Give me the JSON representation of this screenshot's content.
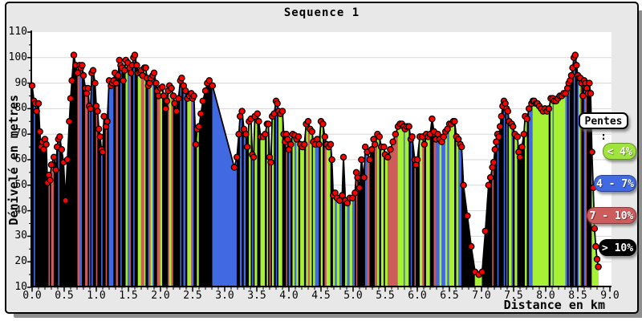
{
  "title": "Sequence 1",
  "panel": {
    "background": "#e8e8e8",
    "border": "#000000",
    "shadow": "#8f8f8f",
    "plot_background": "#ffffff",
    "grid_color": "#d7d7d7"
  },
  "legend": {
    "title": "Pentes :",
    "items": [
      {
        "label": "< 4%",
        "color": "#9fe43c",
        "text_color": "#ffffff"
      },
      {
        "label": "4 - 7%",
        "color": "#4169e1",
        "text_color": "#ffffff"
      },
      {
        "label": "7 - 10%",
        "color": "#cd5c5c",
        "text_color": "#ffffff"
      },
      {
        "label": "> 10%",
        "color": "#000000",
        "text_color": "#ffffff"
      }
    ]
  },
  "chart_data": {
    "type": "area",
    "title": "Sequence 1",
    "xlabel": "Distance en km",
    "ylabel": "Dénivelé en metres",
    "xlim": [
      0,
      9.04
    ],
    "ylim": [
      10,
      110
    ],
    "grid": "horizontal",
    "legend_position": "right",
    "marker_color": "#ff0000",
    "marker_outline": "#000000",
    "outline_color": "#000000",
    "y_tick_labels": [
      "110",
      "100",
      "90",
      "80",
      "70",
      "60",
      "50",
      "40",
      "30",
      "20",
      "10"
    ],
    "x_tick_labels": [
      "0.0",
      "0.5",
      "1.0",
      "1.5",
      "2.0",
      "2.5",
      "3.0",
      "3.5",
      "4.0",
      "4.5",
      "5.0",
      "5.5",
      "6.0",
      "6.5",
      "7.0",
      "7.5",
      "8.0",
      "8.5",
      "9.0"
    ],
    "slope_categories": [
      {
        "cat": "g",
        "label": "< 4%",
        "max_pct": 4,
        "color": "#a6f136"
      },
      {
        "cat": "b",
        "label": "4 - 7%",
        "max_pct": 7,
        "color": "#4169e1"
      },
      {
        "cat": "r",
        "label": "7 - 10%",
        "max_pct": 10,
        "color": "#cd5c5c"
      },
      {
        "cat": "k",
        "label": "> 10%",
        "max_pct": 999,
        "color": "#000000"
      }
    ],
    "segment_overrides": [
      {
        "from": 2.6,
        "to": 2.805,
        "cat": "k"
      },
      {
        "from": 2.805,
        "to": 3.17,
        "cat": "b"
      },
      {
        "from": 8.725,
        "to": 8.85,
        "cat": "g"
      }
    ],
    "points": [
      [
        0.0,
        89
      ],
      [
        0.03,
        83
      ],
      [
        0.05,
        82
      ],
      [
        0.07,
        79
      ],
      [
        0.1,
        82
      ],
      [
        0.12,
        71
      ],
      [
        0.14,
        65
      ],
      [
        0.16,
        67
      ],
      [
        0.18,
        64
      ],
      [
        0.2,
        68
      ],
      [
        0.22,
        66
      ],
      [
        0.24,
        51
      ],
      [
        0.26,
        54
      ],
      [
        0.28,
        52
      ],
      [
        0.3,
        58
      ],
      [
        0.34,
        61
      ],
      [
        0.37,
        56
      ],
      [
        0.39,
        65
      ],
      [
        0.41,
        68
      ],
      [
        0.43,
        69
      ],
      [
        0.46,
        64
      ],
      [
        0.49,
        59
      ],
      [
        0.52,
        44
      ],
      [
        0.55,
        60
      ],
      [
        0.58,
        75
      ],
      [
        0.6,
        84
      ],
      [
        0.62,
        91
      ],
      [
        0.65,
        101
      ],
      [
        0.68,
        97
      ],
      [
        0.71,
        94
      ],
      [
        0.74,
        97
      ],
      [
        0.76,
        96
      ],
      [
        0.78,
        97
      ],
      [
        0.8,
        93
      ],
      [
        0.83,
        88
      ],
      [
        0.85,
        86
      ],
      [
        0.87,
        88
      ],
      [
        0.89,
        81
      ],
      [
        0.91,
        80
      ],
      [
        0.93,
        94
      ],
      [
        0.95,
        95
      ],
      [
        0.98,
        90
      ],
      [
        1.0,
        81
      ],
      [
        1.02,
        79
      ],
      [
        1.04,
        72
      ],
      [
        1.06,
        69
      ],
      [
        1.08,
        64
      ],
      [
        1.1,
        63
      ],
      [
        1.12,
        77
      ],
      [
        1.15,
        73
      ],
      [
        1.17,
        75
      ],
      [
        1.2,
        91
      ],
      [
        1.23,
        89
      ],
      [
        1.25,
        90
      ],
      [
        1.27,
        91
      ],
      [
        1.29,
        94
      ],
      [
        1.31,
        90
      ],
      [
        1.34,
        93
      ],
      [
        1.36,
        99
      ],
      [
        1.38,
        97
      ],
      [
        1.4,
        96
      ],
      [
        1.42,
        91
      ],
      [
        1.44,
        95
      ],
      [
        1.46,
        99
      ],
      [
        1.49,
        98
      ],
      [
        1.52,
        96
      ],
      [
        1.54,
        94
      ],
      [
        1.56,
        97
      ],
      [
        1.58,
        100
      ],
      [
        1.6,
        101
      ],
      [
        1.63,
        97
      ],
      [
        1.65,
        94
      ],
      [
        1.68,
        94.5
      ],
      [
        1.7,
        95
      ],
      [
        1.72,
        93
      ],
      [
        1.75,
        96
      ],
      [
        1.77,
        96
      ],
      [
        1.79,
        92
      ],
      [
        1.81,
        89
      ],
      [
        1.83,
        90
      ],
      [
        1.85,
        92
      ],
      [
        1.88,
        93
      ],
      [
        1.9,
        94
      ],
      [
        1.93,
        90
      ],
      [
        1.95,
        87
      ],
      [
        1.97,
        85
      ],
      [
        2.0,
        88
      ],
      [
        2.03,
        88.5
      ],
      [
        2.05,
        85
      ],
      [
        2.08,
        80
      ],
      [
        2.1,
        83
      ],
      [
        2.12,
        87
      ],
      [
        2.14,
        89
      ],
      [
        2.17,
        88
      ],
      [
        2.2,
        85
      ],
      [
        2.22,
        82
      ],
      [
        2.25,
        79
      ],
      [
        2.28,
        84
      ],
      [
        2.31,
        91
      ],
      [
        2.33,
        92
      ],
      [
        2.36,
        89
      ],
      [
        2.39,
        87
      ],
      [
        2.42,
        84
      ],
      [
        2.45,
        85
      ],
      [
        2.48,
        86
      ],
      [
        2.5,
        84
      ],
      [
        2.52,
        85
      ],
      [
        2.55,
        66
      ],
      [
        2.57,
        72
      ],
      [
        2.6,
        73
      ],
      [
        2.63,
        78
      ],
      [
        2.66,
        83
      ],
      [
        2.7,
        87
      ],
      [
        2.73,
        90
      ],
      [
        2.76,
        91
      ],
      [
        2.81,
        89
      ],
      [
        3.15,
        57
      ],
      [
        3.19,
        61
      ],
      [
        3.22,
        70
      ],
      [
        3.24,
        77
      ],
      [
        3.27,
        79
      ],
      [
        3.3,
        72
      ],
      [
        3.33,
        70
      ],
      [
        3.35,
        65
      ],
      [
        3.38,
        75
      ],
      [
        3.41,
        76
      ],
      [
        3.43,
        62
      ],
      [
        3.45,
        61
      ],
      [
        3.47,
        77
      ],
      [
        3.51,
        78
      ],
      [
        3.53,
        75
      ],
      [
        3.56,
        69
      ],
      [
        3.6,
        69
      ],
      [
        3.63,
        70
      ],
      [
        3.66,
        74
      ],
      [
        3.68,
        74
      ],
      [
        3.7,
        61
      ],
      [
        3.72,
        59
      ],
      [
        3.74,
        77
      ],
      [
        3.77,
        78
      ],
      [
        3.8,
        83
      ],
      [
        3.82,
        82
      ],
      [
        3.84,
        79
      ],
      [
        3.87,
        78
      ],
      [
        3.9,
        79
      ],
      [
        3.92,
        70
      ],
      [
        3.94,
        67
      ],
      [
        3.96,
        70
      ],
      [
        3.98,
        68
      ],
      [
        4.0,
        64
      ],
      [
        4.03,
        66
      ],
      [
        4.06,
        70
      ],
      [
        4.09,
        69.5
      ],
      [
        4.12,
        68
      ],
      [
        4.15,
        69
      ],
      [
        4.18,
        66
      ],
      [
        4.21,
        65
      ],
      [
        4.24,
        66
      ],
      [
        4.27,
        74
      ],
      [
        4.3,
        75
      ],
      [
        4.33,
        72
      ],
      [
        4.36,
        71
      ],
      [
        4.38,
        67
      ],
      [
        4.41,
        66
      ],
      [
        4.44,
        68
      ],
      [
        4.47,
        66
      ],
      [
        4.5,
        75
      ],
      [
        4.53,
        74
      ],
      [
        4.56,
        69
      ],
      [
        4.59,
        66
      ],
      [
        4.62,
        65
      ],
      [
        4.65,
        66
      ],
      [
        4.67,
        60
      ],
      [
        4.69,
        46
      ],
      [
        4.72,
        47
      ],
      [
        4.75,
        45
      ],
      [
        4.79,
        44
      ],
      [
        4.83,
        46
      ],
      [
        4.85,
        61
      ],
      [
        4.88,
        44
      ],
      [
        4.91,
        43
      ],
      [
        4.95,
        45
      ],
      [
        4.99,
        45
      ],
      [
        5.03,
        47
      ],
      [
        5.05,
        55
      ],
      [
        5.07,
        53
      ],
      [
        5.1,
        49
      ],
      [
        5.13,
        60
      ],
      [
        5.17,
        53
      ],
      [
        5.19,
        65
      ],
      [
        5.22,
        63
      ],
      [
        5.26,
        60
      ],
      [
        5.29,
        64
      ],
      [
        5.32,
        68
      ],
      [
        5.34,
        66
      ],
      [
        5.38,
        70
      ],
      [
        5.41,
        69
      ],
      [
        5.44,
        65
      ],
      [
        5.48,
        65
      ],
      [
        5.5,
        62
      ],
      [
        5.54,
        61
      ],
      [
        5.58,
        64
      ],
      [
        5.62,
        67
      ],
      [
        5.66,
        70
      ],
      [
        5.7,
        73
      ],
      [
        5.73,
        74
      ],
      [
        5.76,
        74
      ],
      [
        5.79,
        73
      ],
      [
        5.81,
        72
      ],
      [
        5.84,
        73
      ],
      [
        5.87,
        73
      ],
      [
        5.9,
        68
      ],
      [
        5.92,
        69
      ],
      [
        5.96,
        60
      ],
      [
        5.98,
        58
      ],
      [
        6.0,
        60
      ],
      [
        6.04,
        69
      ],
      [
        6.08,
        69
      ],
      [
        6.11,
        66
      ],
      [
        6.14,
        70
      ],
      [
        6.17,
        69
      ],
      [
        6.2,
        70
      ],
      [
        6.23,
        76
      ],
      [
        6.26,
        71
      ],
      [
        6.29,
        68
      ],
      [
        6.32,
        70
      ],
      [
        6.35,
        68
      ],
      [
        6.38,
        67
      ],
      [
        6.41,
        69
      ],
      [
        6.44,
        71
      ],
      [
        6.47,
        72
      ],
      [
        6.5,
        74
      ],
      [
        6.53,
        74
      ],
      [
        6.56,
        75
      ],
      [
        6.58,
        75
      ],
      [
        6.61,
        69
      ],
      [
        6.64,
        68
      ],
      [
        6.67,
        66
      ],
      [
        6.69,
        65
      ],
      [
        6.72,
        50
      ],
      [
        6.78,
        38
      ],
      [
        6.84,
        26
      ],
      [
        6.9,
        16
      ],
      [
        6.96,
        15
      ],
      [
        7.01,
        16
      ],
      [
        7.06,
        32
      ],
      [
        7.11,
        50
      ],
      [
        7.14,
        53
      ],
      [
        7.17,
        57
      ],
      [
        7.19,
        59
      ],
      [
        7.21,
        64
      ],
      [
        7.23,
        67
      ],
      [
        7.25,
        70
      ],
      [
        7.27,
        69
      ],
      [
        7.29,
        73
      ],
      [
        7.31,
        77
      ],
      [
        7.33,
        81
      ],
      [
        7.35,
        83
      ],
      [
        7.37,
        82
      ],
      [
        7.39,
        80
      ],
      [
        7.41,
        79
      ],
      [
        7.43,
        75
      ],
      [
        7.47,
        74
      ],
      [
        7.49,
        73
      ],
      [
        7.52,
        70
      ],
      [
        7.56,
        69
      ],
      [
        7.58,
        63
      ],
      [
        7.6,
        61
      ],
      [
        7.63,
        65
      ],
      [
        7.66,
        70
      ],
      [
        7.68,
        77
      ],
      [
        7.71,
        76
      ],
      [
        7.74,
        80
      ],
      [
        7.78,
        82
      ],
      [
        7.8,
        83
      ],
      [
        7.82,
        83
      ],
      [
        7.85,
        82
      ],
      [
        7.87,
        82
      ],
      [
        7.9,
        81
      ],
      [
        7.93,
        80
      ],
      [
        7.96,
        79
      ],
      [
        7.99,
        80
      ],
      [
        8.02,
        79
      ],
      [
        8.05,
        80
      ],
      [
        8.08,
        84
      ],
      [
        8.11,
        84
      ],
      [
        8.13,
        83
      ],
      [
        8.16,
        83
      ],
      [
        8.19,
        84
      ],
      [
        8.22,
        85
      ],
      [
        8.25,
        85
      ],
      [
        8.28,
        86
      ],
      [
        8.31,
        86
      ],
      [
        8.34,
        88
      ],
      [
        8.36,
        90
      ],
      [
        8.38,
        91
      ],
      [
        8.4,
        93
      ],
      [
        8.42,
        96
      ],
      [
        8.44,
        100
      ],
      [
        8.46,
        101
      ],
      [
        8.48,
        97
      ],
      [
        8.5,
        93
      ],
      [
        8.52,
        92
      ],
      [
        8.54,
        92
      ],
      [
        8.56,
        90
      ],
      [
        8.58,
        85
      ],
      [
        8.6,
        91
      ],
      [
        8.62,
        90
      ],
      [
        8.64,
        88
      ],
      [
        8.66,
        86
      ],
      [
        8.68,
        90
      ],
      [
        8.7,
        86
      ],
      [
        8.72,
        63
      ],
      [
        8.74,
        49
      ],
      [
        8.76,
        33
      ],
      [
        8.78,
        26
      ],
      [
        8.8,
        21
      ],
      [
        8.82,
        18
      ]
    ]
  }
}
